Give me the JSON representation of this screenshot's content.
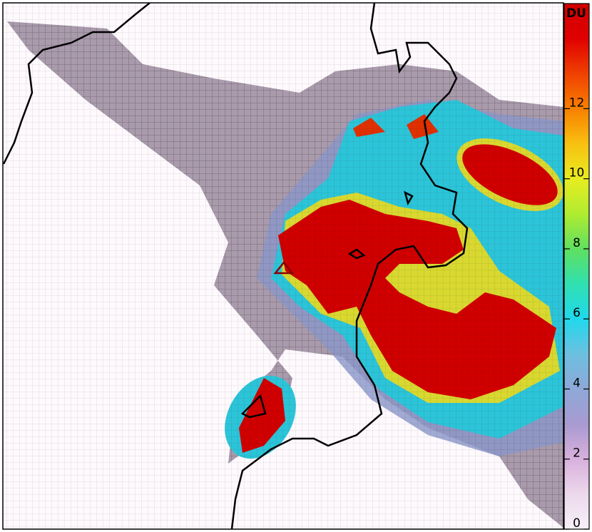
{
  "map": {
    "colorbar": {
      "label": "DU",
      "lim": [
        0,
        15
      ],
      "ticks": [
        0,
        2,
        4,
        6,
        8,
        10,
        12
      ],
      "colors": [
        "#f8f0f8",
        "#ecd8ec",
        "#d8b0dc",
        "#a89ad0",
        "#8ea8d8",
        "#6cc0e0",
        "#20d8ec",
        "#30e0b0",
        "#60e060",
        "#b0ec30",
        "#e8ec20",
        "#f8c010",
        "#f88000",
        "#f04000",
        "#e00000",
        "#d00000"
      ]
    }
  }
}
